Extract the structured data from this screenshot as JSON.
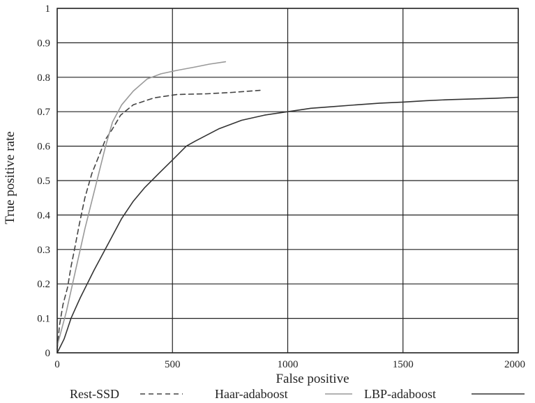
{
  "chart_data": {
    "type": "line",
    "title": "",
    "xlabel": "False positive",
    "ylabel": "True positive rate",
    "xlim": [
      0,
      2000
    ],
    "ylim": [
      0,
      1
    ],
    "x_ticks": [
      "0",
      "500",
      "1000",
      "1500",
      "2000"
    ],
    "y_ticks": [
      "0",
      "0.1",
      "0.2",
      "0.3",
      "0.4",
      "0.5",
      "0.6",
      "0.7",
      "0.8",
      "0.9",
      "1"
    ],
    "grid": true,
    "legend_position": "bottom",
    "series": [
      {
        "name": "Rest-SSD",
        "style": "dashed",
        "color": "#444444",
        "points": [
          [
            0,
            0.01
          ],
          [
            10,
            0.08
          ],
          [
            25,
            0.14
          ],
          [
            45,
            0.19
          ],
          [
            60,
            0.25
          ],
          [
            75,
            0.3
          ],
          [
            95,
            0.37
          ],
          [
            120,
            0.45
          ],
          [
            150,
            0.52
          ],
          [
            180,
            0.57
          ],
          [
            210,
            0.62
          ],
          [
            240,
            0.65
          ],
          [
            275,
            0.69
          ],
          [
            330,
            0.72
          ],
          [
            420,
            0.74
          ],
          [
            520,
            0.75
          ],
          [
            650,
            0.752
          ],
          [
            760,
            0.756
          ],
          [
            880,
            0.762
          ]
        ]
      },
      {
        "name": "Haar-adaboost",
        "style": "solid",
        "color": "#999999",
        "points": [
          [
            0,
            0.02
          ],
          [
            20,
            0.07
          ],
          [
            40,
            0.12
          ],
          [
            60,
            0.18
          ],
          [
            80,
            0.24
          ],
          [
            100,
            0.3
          ],
          [
            120,
            0.36
          ],
          [
            150,
            0.44
          ],
          [
            180,
            0.52
          ],
          [
            210,
            0.6
          ],
          [
            240,
            0.67
          ],
          [
            280,
            0.72
          ],
          [
            330,
            0.76
          ],
          [
            390,
            0.795
          ],
          [
            450,
            0.81
          ],
          [
            520,
            0.82
          ],
          [
            600,
            0.83
          ],
          [
            660,
            0.838
          ],
          [
            730,
            0.845
          ]
        ]
      },
      {
        "name": "LBP-adaboost",
        "style": "solid",
        "color": "#333333",
        "points": [
          [
            0,
            0.0
          ],
          [
            15,
            0.02
          ],
          [
            30,
            0.04
          ],
          [
            45,
            0.07
          ],
          [
            60,
            0.1
          ],
          [
            80,
            0.13
          ],
          [
            100,
            0.16
          ],
          [
            130,
            0.2
          ],
          [
            160,
            0.24
          ],
          [
            200,
            0.29
          ],
          [
            240,
            0.34
          ],
          [
            280,
            0.39
          ],
          [
            330,
            0.44
          ],
          [
            380,
            0.48
          ],
          [
            440,
            0.52
          ],
          [
            500,
            0.56
          ],
          [
            560,
            0.6
          ],
          [
            600,
            0.615
          ],
          [
            700,
            0.65
          ],
          [
            800,
            0.675
          ],
          [
            900,
            0.69
          ],
          [
            1000,
            0.7
          ],
          [
            1100,
            0.71
          ],
          [
            1200,
            0.715
          ],
          [
            1300,
            0.72
          ],
          [
            1400,
            0.725
          ],
          [
            1500,
            0.728
          ],
          [
            1600,
            0.732
          ],
          [
            1700,
            0.735
          ],
          [
            1800,
            0.737
          ],
          [
            1900,
            0.739
          ],
          [
            2000,
            0.742
          ]
        ]
      }
    ]
  }
}
